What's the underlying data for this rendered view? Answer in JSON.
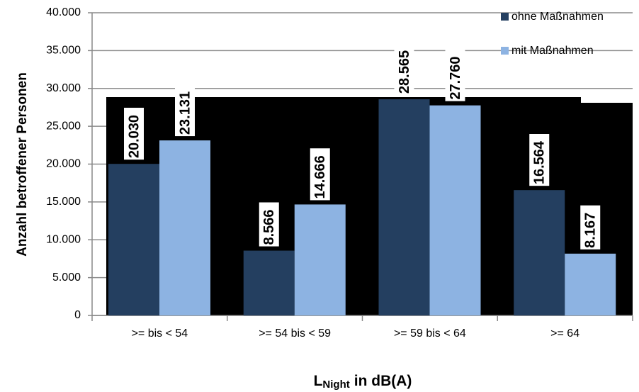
{
  "chart_data": {
    "type": "bar",
    "y_label": "Anzahl betroffener Personen",
    "x_label": "L",
    "x_label_sub": "Night",
    "x_label_rest": "in dB(A)",
    "categories": [
      ">= bis < 54",
      ">= 54 bis < 59",
      ">= 59 bis < 64",
      ">= 64"
    ],
    "series": [
      {
        "name": "ohne Maßnahmen",
        "color": "#243f60",
        "values": [
          20030,
          8566,
          28565,
          16564
        ],
        "value_labels": [
          "20.030",
          "8.566",
          "28.565",
          "16.564"
        ]
      },
      {
        "name": "mit Maßnahmen",
        "color": "#8db3e2",
        "values": [
          23131,
          14666,
          27760,
          8167
        ],
        "value_labels": [
          "23.131",
          "14.666",
          "27.760",
          "8.167"
        ]
      }
    ],
    "ylim": [
      0,
      40000
    ],
    "yticks": [
      0,
      {
        "value": 5000,
        "label": "5.000"
      },
      {
        "value": 10000,
        "label": "10.000"
      },
      {
        "value": 15000,
        "label": "15.000"
      },
      {
        "value": 20000,
        "label": "20.000"
      },
      {
        "value": 25000,
        "label": "25.000"
      },
      {
        "value": 30000,
        "label": "30.000"
      },
      {
        "value": 35000,
        "label": "35.000"
      },
      {
        "value": 40000,
        "label": "40.000"
      }
    ],
    "grid": true,
    "legend": "top-right"
  }
}
